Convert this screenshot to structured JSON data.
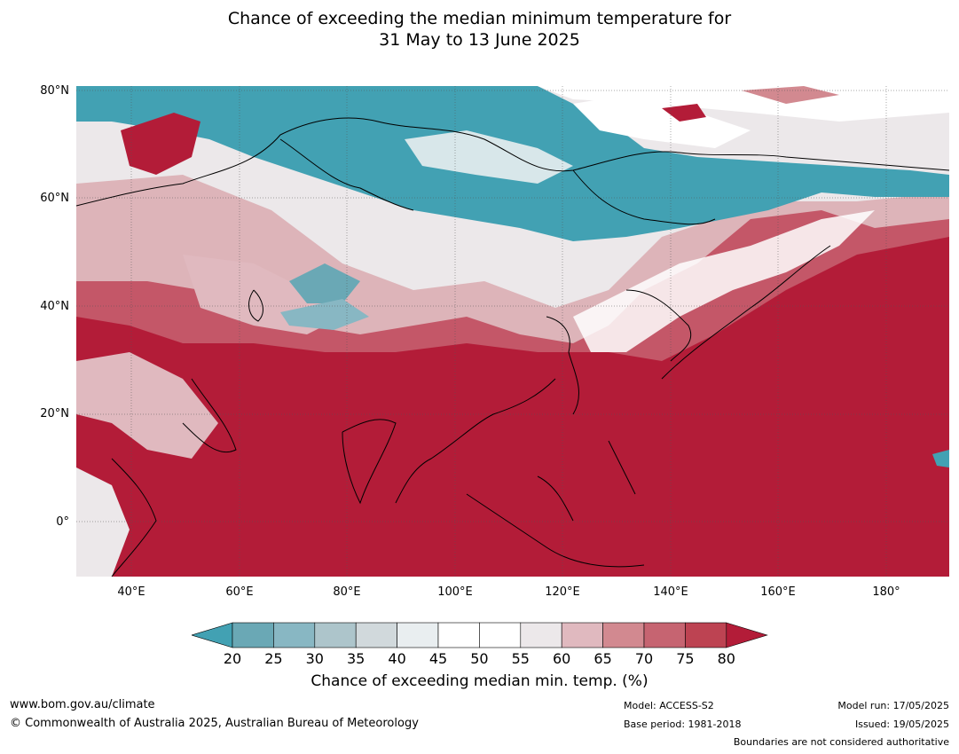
{
  "title": {
    "line1": "Chance of exceeding the median minimum temperature for",
    "line2": "31 May to 13 June 2025"
  },
  "axes": {
    "lat_labels": [
      "80°N",
      "60°N",
      "40°N",
      "20°N",
      "0°"
    ],
    "lon_labels": [
      "40°E",
      "60°E",
      "80°E",
      "100°E",
      "120°E",
      "140°E",
      "160°E",
      "180°"
    ]
  },
  "colorbar": {
    "ticks": [
      "20",
      "25",
      "30",
      "35",
      "40",
      "45",
      "50",
      "55",
      "60",
      "65",
      "70",
      "75",
      "80"
    ],
    "colors": [
      "#42a1b3",
      "#6aa8b5",
      "#88b7c3",
      "#adc5cb",
      "#d1d9dc",
      "#e9eef0",
      "#ffffff",
      "#ffffff",
      "#ece8ea",
      "#e0b9bf",
      "#d28990",
      "#c66471",
      "#bd4352",
      "#b31c38"
    ],
    "label": "Chance of exceeding median min. temp. (%)"
  },
  "footer": {
    "url": "www.bom.gov.au/climate",
    "copyright": "© Commonwealth of Australia 2025, Australian Bureau of Meteorology",
    "model": "Model: ACCESS-S2",
    "base_period": "Base period: 1981-2018",
    "model_run": "Model run: 17/05/2025",
    "issued": "Issued: 19/05/2025",
    "disclaimer": "Boundaries are not considered authoritative"
  }
}
